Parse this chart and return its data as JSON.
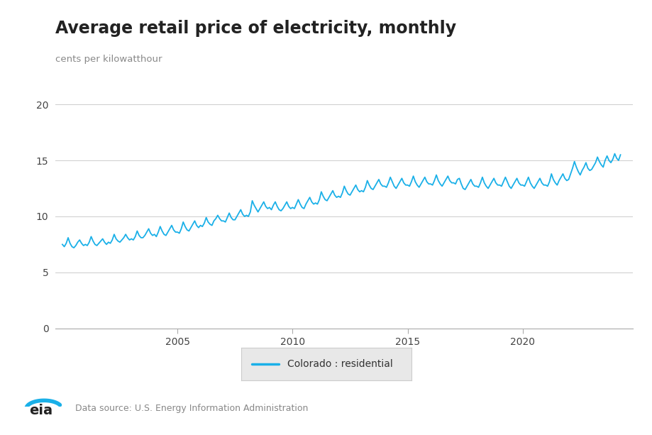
{
  "title": "Average retail price of electricity, monthly",
  "ylabel": "cents per kilowatthour",
  "line_color": "#1ab0e8",
  "background_color": "#ffffff",
  "legend_label": "Colorado : residential",
  "source_text": "Data source: U.S. Energy Information Administration",
  "ylim": [
    0,
    20
  ],
  "yticks": [
    0,
    5,
    10,
    15,
    20
  ],
  "xlim": [
    1999.7,
    2024.8
  ],
  "xtick_positions": [
    2005,
    2010,
    2015,
    2020
  ],
  "data": {
    "dates_float": [
      2000.0,
      2000.083,
      2000.167,
      2000.25,
      2000.333,
      2000.417,
      2000.5,
      2000.583,
      2000.667,
      2000.75,
      2000.833,
      2000.917,
      2001.0,
      2001.083,
      2001.167,
      2001.25,
      2001.333,
      2001.417,
      2001.5,
      2001.583,
      2001.667,
      2001.75,
      2001.833,
      2001.917,
      2002.0,
      2002.083,
      2002.167,
      2002.25,
      2002.333,
      2002.417,
      2002.5,
      2002.583,
      2002.667,
      2002.75,
      2002.833,
      2002.917,
      2003.0,
      2003.083,
      2003.167,
      2003.25,
      2003.333,
      2003.417,
      2003.5,
      2003.583,
      2003.667,
      2003.75,
      2003.833,
      2003.917,
      2004.0,
      2004.083,
      2004.167,
      2004.25,
      2004.333,
      2004.417,
      2004.5,
      2004.583,
      2004.667,
      2004.75,
      2004.833,
      2004.917,
      2005.0,
      2005.083,
      2005.167,
      2005.25,
      2005.333,
      2005.417,
      2005.5,
      2005.583,
      2005.667,
      2005.75,
      2005.833,
      2005.917,
      2006.0,
      2006.083,
      2006.167,
      2006.25,
      2006.333,
      2006.417,
      2006.5,
      2006.583,
      2006.667,
      2006.75,
      2006.833,
      2006.917,
      2007.0,
      2007.083,
      2007.167,
      2007.25,
      2007.333,
      2007.417,
      2007.5,
      2007.583,
      2007.667,
      2007.75,
      2007.833,
      2007.917,
      2008.0,
      2008.083,
      2008.167,
      2008.25,
      2008.333,
      2008.417,
      2008.5,
      2008.583,
      2008.667,
      2008.75,
      2008.833,
      2008.917,
      2009.0,
      2009.083,
      2009.167,
      2009.25,
      2009.333,
      2009.417,
      2009.5,
      2009.583,
      2009.667,
      2009.75,
      2009.833,
      2009.917,
      2010.0,
      2010.083,
      2010.167,
      2010.25,
      2010.333,
      2010.417,
      2010.5,
      2010.583,
      2010.667,
      2010.75,
      2010.833,
      2010.917,
      2011.0,
      2011.083,
      2011.167,
      2011.25,
      2011.333,
      2011.417,
      2011.5,
      2011.583,
      2011.667,
      2011.75,
      2011.833,
      2011.917,
      2012.0,
      2012.083,
      2012.167,
      2012.25,
      2012.333,
      2012.417,
      2012.5,
      2012.583,
      2012.667,
      2012.75,
      2012.833,
      2012.917,
      2013.0,
      2013.083,
      2013.167,
      2013.25,
      2013.333,
      2013.417,
      2013.5,
      2013.583,
      2013.667,
      2013.75,
      2013.833,
      2013.917,
      2014.0,
      2014.083,
      2014.167,
      2014.25,
      2014.333,
      2014.417,
      2014.5,
      2014.583,
      2014.667,
      2014.75,
      2014.833,
      2014.917,
      2015.0,
      2015.083,
      2015.167,
      2015.25,
      2015.333,
      2015.417,
      2015.5,
      2015.583,
      2015.667,
      2015.75,
      2015.833,
      2015.917,
      2016.0,
      2016.083,
      2016.167,
      2016.25,
      2016.333,
      2016.417,
      2016.5,
      2016.583,
      2016.667,
      2016.75,
      2016.833,
      2016.917,
      2017.0,
      2017.083,
      2017.167,
      2017.25,
      2017.333,
      2017.417,
      2017.5,
      2017.583,
      2017.667,
      2017.75,
      2017.833,
      2017.917,
      2018.0,
      2018.083,
      2018.167,
      2018.25,
      2018.333,
      2018.417,
      2018.5,
      2018.583,
      2018.667,
      2018.75,
      2018.833,
      2018.917,
      2019.0,
      2019.083,
      2019.167,
      2019.25,
      2019.333,
      2019.417,
      2019.5,
      2019.583,
      2019.667,
      2019.75,
      2019.833,
      2019.917,
      2020.0,
      2020.083,
      2020.167,
      2020.25,
      2020.333,
      2020.417,
      2020.5,
      2020.583,
      2020.667,
      2020.75,
      2020.833,
      2020.917,
      2021.0,
      2021.083,
      2021.167,
      2021.25,
      2021.333,
      2021.417,
      2021.5,
      2021.583,
      2021.667,
      2021.75,
      2021.833,
      2021.917,
      2022.0,
      2022.083,
      2022.167,
      2022.25,
      2022.333,
      2022.417,
      2022.5,
      2022.583,
      2022.667,
      2022.75,
      2022.833,
      2022.917,
      2023.0,
      2023.083,
      2023.167,
      2023.25,
      2023.333,
      2023.417,
      2023.5,
      2023.583,
      2023.667,
      2023.75,
      2023.833,
      2023.917,
      2024.0,
      2024.083,
      2024.167,
      2024.25
    ],
    "values": [
      7.5,
      7.3,
      7.6,
      8.1,
      7.6,
      7.3,
      7.2,
      7.4,
      7.7,
      7.9,
      7.6,
      7.4,
      7.5,
      7.4,
      7.7,
      8.2,
      7.8,
      7.5,
      7.4,
      7.6,
      7.8,
      8.0,
      7.7,
      7.5,
      7.7,
      7.6,
      7.9,
      8.4,
      8.0,
      7.8,
      7.7,
      7.9,
      8.1,
      8.4,
      8.1,
      7.9,
      8.0,
      7.9,
      8.2,
      8.7,
      8.3,
      8.1,
      8.1,
      8.3,
      8.6,
      8.9,
      8.5,
      8.3,
      8.4,
      8.2,
      8.6,
      9.1,
      8.7,
      8.4,
      8.3,
      8.6,
      8.9,
      9.2,
      8.8,
      8.6,
      8.6,
      8.5,
      8.9,
      9.5,
      9.1,
      8.8,
      8.7,
      9.0,
      9.3,
      9.6,
      9.2,
      9.0,
      9.2,
      9.1,
      9.4,
      9.9,
      9.5,
      9.3,
      9.2,
      9.6,
      9.8,
      10.1,
      9.8,
      9.6,
      9.6,
      9.5,
      9.9,
      10.3,
      9.9,
      9.7,
      9.7,
      10.0,
      10.3,
      10.6,
      10.2,
      10.0,
      10.1,
      10.0,
      10.4,
      11.4,
      11.0,
      10.7,
      10.4,
      10.7,
      11.0,
      11.3,
      10.9,
      10.7,
      10.8,
      10.6,
      11.0,
      11.3,
      10.9,
      10.6,
      10.5,
      10.7,
      11.0,
      11.3,
      10.9,
      10.7,
      10.8,
      10.7,
      11.1,
      11.5,
      11.1,
      10.8,
      10.7,
      11.1,
      11.4,
      11.7,
      11.3,
      11.1,
      11.2,
      11.1,
      11.5,
      12.2,
      11.8,
      11.5,
      11.4,
      11.7,
      12.0,
      12.3,
      11.9,
      11.7,
      11.8,
      11.7,
      12.1,
      12.7,
      12.3,
      12.0,
      11.9,
      12.2,
      12.5,
      12.8,
      12.4,
      12.2,
      12.3,
      12.2,
      12.6,
      13.2,
      12.8,
      12.5,
      12.4,
      12.7,
      13.0,
      13.3,
      12.9,
      12.7,
      12.7,
      12.6,
      13.0,
      13.5,
      13.1,
      12.7,
      12.5,
      12.8,
      13.1,
      13.4,
      13.0,
      12.8,
      12.8,
      12.7,
      13.1,
      13.6,
      13.1,
      12.8,
      12.6,
      12.9,
      13.2,
      13.5,
      13.1,
      12.9,
      12.9,
      12.8,
      13.2,
      13.7,
      13.2,
      12.9,
      12.7,
      13.0,
      13.3,
      13.6,
      13.2,
      13.0,
      13.0,
      12.9,
      13.3,
      13.4,
      12.9,
      12.5,
      12.4,
      12.7,
      13.0,
      13.3,
      12.9,
      12.7,
      12.7,
      12.6,
      13.0,
      13.5,
      13.0,
      12.7,
      12.5,
      12.8,
      13.1,
      13.4,
      13.0,
      12.8,
      12.8,
      12.7,
      13.1,
      13.5,
      13.1,
      12.7,
      12.5,
      12.8,
      13.1,
      13.4,
      13.0,
      12.8,
      12.8,
      12.7,
      13.1,
      13.5,
      13.0,
      12.7,
      12.5,
      12.8,
      13.1,
      13.4,
      13.0,
      12.8,
      12.8,
      12.7,
      13.1,
      13.8,
      13.3,
      13.0,
      12.8,
      13.2,
      13.5,
      13.8,
      13.4,
      13.2,
      13.3,
      13.8,
      14.3,
      14.9,
      14.4,
      14.0,
      13.7,
      14.1,
      14.4,
      14.8,
      14.3,
      14.1,
      14.2,
      14.5,
      14.8,
      15.3,
      14.9,
      14.6,
      14.4,
      15.0,
      15.4,
      15.0,
      14.8,
      15.1,
      15.6,
      15.2,
      15.0,
      15.5
    ]
  }
}
